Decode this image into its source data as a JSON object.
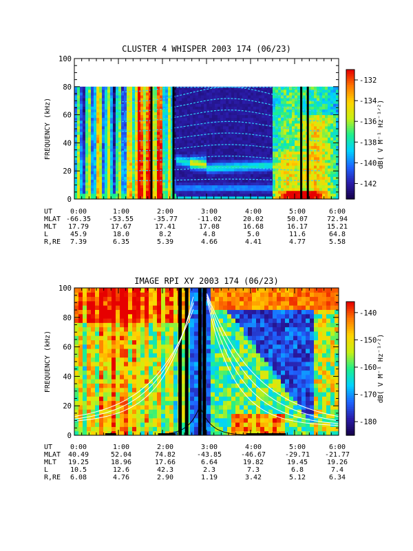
{
  "chart_data": [
    {
      "type": "heatmap",
      "title": "CLUSTER 4 WHISPER 2003 174 (06/23)",
      "ylabel": "FREQUENCY (kHz)",
      "ylim": [
        0,
        100
      ],
      "yticks": [
        "0",
        "20",
        "40",
        "60",
        "80",
        "100"
      ],
      "data_ylim": [
        0,
        80
      ],
      "xlim": [
        "0:00",
        "6:00"
      ],
      "colorbar": {
        "label": "dB( V M⁻¹ Hz⁻¹ᐟ²)",
        "ticks": [
          "-132",
          "-134",
          "-136",
          "-138",
          "-140",
          "-142"
        ],
        "range": [
          -143.5,
          -131
        ],
        "colors": [
          "#150046",
          "#2a1ca8",
          "#1e63ff",
          "#00d2ff",
          "#1ef08c",
          "#c8f014",
          "#ffd400",
          "#ff7800",
          "#e60000"
        ]
      },
      "ephemeris": {
        "row_labels": [
          "UT",
          "MLAT",
          "MLT",
          "L",
          "R,RE"
        ],
        "columns": [
          [
            "0:00",
            "-66.35",
            "17.79",
            "45.9",
            "7.39"
          ],
          [
            "1:00",
            "-53.55",
            "17.67",
            "18.0",
            "6.35"
          ],
          [
            "2:00",
            "-35.77",
            "17.41",
            "8.2",
            "5.39"
          ],
          [
            "3:00",
            "-11.02",
            "17.08",
            "4.8",
            "4.66"
          ],
          [
            "4:00",
            "20.02",
            "16.68",
            "5.0",
            "4.41"
          ],
          [
            "5:00",
            "50.07",
            "16.17",
            "11.6",
            "4.77"
          ],
          [
            "6:00",
            "72.94",
            "15.21",
            "64.8",
            "5.58"
          ]
        ]
      }
    },
    {
      "type": "heatmap",
      "title": "IMAGE RPI XY 2003 174 (06/23)",
      "ylabel": "FREQUENCY (kHz)",
      "ylim": [
        0,
        100
      ],
      "yticks": [
        "0",
        "20",
        "40",
        "60",
        "80",
        "100"
      ],
      "xlim": [
        "0:00",
        "6:00"
      ],
      "colorbar": {
        "label": "dB( V M⁻¹ Hz⁻¹ᐟ²)",
        "ticks": [
          "-140",
          "-150",
          "-160",
          "-170",
          "-180"
        ],
        "range": [
          -185,
          -136
        ],
        "colors": [
          "#150046",
          "#2a1ca8",
          "#1e63ff",
          "#00d2ff",
          "#1ef08c",
          "#c8f014",
          "#ffd400",
          "#ff7800",
          "#e60000"
        ]
      },
      "ephemeris": {
        "row_labels": [
          "UT",
          "MLAT",
          "MLT",
          "L",
          "R,RE"
        ],
        "columns": [
          [
            "0:00",
            "40.49",
            "19.25",
            "10.5",
            "6.08"
          ],
          [
            "1:00",
            "52.04",
            "18.96",
            "12.6",
            "4.76"
          ],
          [
            "2:00",
            "74.82",
            "17.66",
            "42.3",
            "2.90"
          ],
          [
            "3:00",
            "-43.85",
            "6.64",
            "2.3",
            "1.19"
          ],
          [
            "4:00",
            "-46.67",
            "19.82",
            "7.3",
            "3.42"
          ],
          [
            "5:00",
            "-29.71",
            "19.45",
            "6.8",
            "5.12"
          ],
          [
            "6:00",
            "-21.77",
            "19.26",
            "7.4",
            "6.34"
          ]
        ]
      }
    }
  ]
}
